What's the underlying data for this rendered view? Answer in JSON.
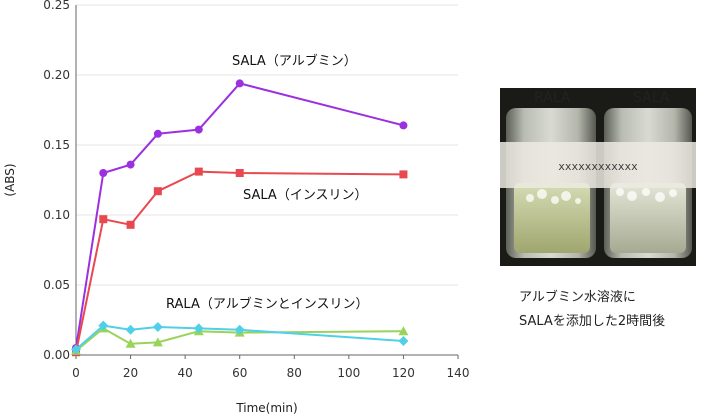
{
  "chart_data": {
    "type": "line",
    "xlabel": "Time(min)",
    "ylabel": "(ABS)",
    "xlim": [
      0,
      140
    ],
    "ylim": [
      0,
      0.25
    ],
    "x_ticks": [
      "0",
      "20",
      "40",
      "60",
      "80",
      "100",
      "120",
      "140"
    ],
    "y_ticks": [
      "0.00",
      "0.05",
      "0.10",
      "0.15",
      "0.20",
      "0.25"
    ],
    "grid": "horizontal",
    "series": [
      {
        "name": "SALA（アルブミン）",
        "color": "#9b30e0",
        "marker": "circle",
        "x": [
          0,
          10,
          20,
          30,
          45,
          60,
          120
        ],
        "y": [
          0.005,
          0.13,
          0.136,
          0.158,
          0.161,
          0.194,
          0.164
        ]
      },
      {
        "name": "SALA（インスリン）",
        "color": "#e8484f",
        "marker": "square",
        "x": [
          0,
          10,
          20,
          30,
          45,
          60,
          120
        ],
        "y": [
          0.002,
          0.097,
          0.093,
          0.117,
          0.131,
          0.13,
          0.129
        ]
      },
      {
        "name": "",
        "color": "#99d45a",
        "marker": "triangle",
        "x": [
          0,
          10,
          20,
          30,
          45,
          60,
          120
        ],
        "y": [
          0.003,
          0.019,
          0.008,
          0.009,
          0.017,
          0.016,
          0.017
        ]
      },
      {
        "name": "",
        "color": "#4fd0e8",
        "marker": "diamond",
        "x": [
          0,
          10,
          20,
          30,
          45,
          60,
          120
        ],
        "y": [
          0.004,
          0.021,
          0.018,
          0.02,
          0.019,
          0.018,
          0.01
        ]
      }
    ],
    "annotations": [
      "RALA（アルブミンとインスリン）"
    ]
  },
  "photo": {
    "label_left": "RALA",
    "label_right": "SALA",
    "bottle_text": "xxxxxxxxxxxx",
    "caption_line1": "アルブミン水溶液に",
    "caption_line2": "SALAを添加した2時間後"
  }
}
